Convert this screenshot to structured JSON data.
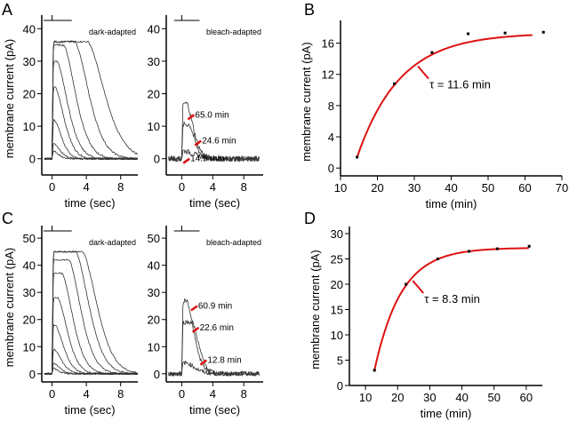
{
  "panel_letters": [
    "A",
    "B",
    "C",
    "D"
  ],
  "chart_data": [
    {
      "id": "A-dark",
      "type": "line",
      "panel": "A",
      "annotation": "dark-adapted",
      "xlabel": "time (sec)",
      "ylabel": "membrane current (pA)",
      "xlim": [
        -1.2,
        10
      ],
      "ylim": [
        -5,
        42
      ],
      "xticks": [
        0,
        4,
        8
      ],
      "yticks": [
        0,
        10,
        20,
        30,
        40
      ],
      "traces": [
        {
          "amp": 2.5,
          "plateau": 0,
          "decay": 0.8
        },
        {
          "amp": 5,
          "plateau": 0,
          "decay": 1.0
        },
        {
          "amp": 12,
          "plateau": 0.1,
          "decay": 1.2
        },
        {
          "amp": 22,
          "plateau": 0.2,
          "decay": 1.5
        },
        {
          "amp": 30,
          "plateau": 0.4,
          "decay": 1.8
        },
        {
          "amp": 35,
          "plateau": 1.2,
          "decay": 2.0
        },
        {
          "amp": 36,
          "plateau": 2.5,
          "decay": 2.3
        },
        {
          "amp": 36,
          "plateau": 4.0,
          "decay": 2.8
        }
      ],
      "labels": []
    },
    {
      "id": "A-bleach",
      "type": "line",
      "panel": "A",
      "annotation": "bleach-adapted",
      "xlabel": "time (sec)",
      "ylabel": "",
      "xlim": [
        -2,
        10.5
      ],
      "ylim": [
        -5,
        42
      ],
      "xticks": [
        0,
        4,
        8
      ],
      "yticks": [
        0,
        10,
        20,
        30,
        40
      ],
      "traces": [
        {
          "amp": 2.5,
          "plateau": 0,
          "decay": 2.0
        },
        {
          "amp": 10.5,
          "plateau": 0.8,
          "decay": 1.0
        },
        {
          "amp": 17,
          "plateau": 0.5,
          "decay": 1.2
        }
      ],
      "labels": [
        {
          "text": "65.0 min",
          "x": 1.6,
          "y": 13.5
        },
        {
          "text": "24.6 min",
          "x": 2.5,
          "y": 5.5
        },
        {
          "text": "14.5 min",
          "x": 1.0,
          "y": 0
        }
      ]
    },
    {
      "id": "B",
      "type": "scatter",
      "panel": "B",
      "xlabel": "time (min)",
      "ylabel": "membrane current (pA)",
      "xlim": [
        10,
        70
      ],
      "ylim": [
        -1,
        18
      ],
      "xticks": [
        10,
        20,
        30,
        40,
        50,
        60,
        70
      ],
      "yticks": [
        0,
        4,
        8,
        12,
        16
      ],
      "points": [
        [
          14.5,
          1.4
        ],
        [
          24.6,
          10.8
        ],
        [
          34.8,
          14.8
        ],
        [
          44.6,
          17.2
        ],
        [
          54.6,
          17.3
        ],
        [
          65.0,
          17.4
        ]
      ],
      "fit": {
        "tau": 11.6,
        "plateau": 17.3,
        "x0": 14.5,
        "y0": 1.4,
        "xmax": 62
      },
      "fit_label": "τ = 11.6 min",
      "fit_color": "#dd1111"
    },
    {
      "id": "C-dark",
      "type": "line",
      "panel": "C",
      "annotation": "dark-adapted",
      "xlabel": "time (sec)",
      "ylabel": "membrane current (pA)",
      "xlim": [
        -1.2,
        10
      ],
      "ylim": [
        -3,
        52
      ],
      "xticks": [
        0,
        4,
        8
      ],
      "yticks": [
        0,
        10,
        20,
        30,
        40,
        50
      ],
      "traces": [
        {
          "amp": 2,
          "plateau": 0,
          "decay": 0.8
        },
        {
          "amp": 4,
          "plateau": 0,
          "decay": 1.0
        },
        {
          "amp": 9,
          "plateau": 0.1,
          "decay": 1.2
        },
        {
          "amp": 18,
          "plateau": 0.2,
          "decay": 1.4
        },
        {
          "amp": 28,
          "plateau": 0.5,
          "decay": 1.6
        },
        {
          "amp": 37,
          "plateau": 1.0,
          "decay": 1.8
        },
        {
          "amp": 42,
          "plateau": 1.8,
          "decay": 2.0
        },
        {
          "amp": 45,
          "plateau": 2.6,
          "decay": 2.2
        },
        {
          "amp": 45,
          "plateau": 3.4,
          "decay": 2.4
        }
      ],
      "labels": []
    },
    {
      "id": "C-bleach",
      "type": "line",
      "panel": "C",
      "annotation": "bleach-adapted",
      "xlabel": "time (sec)",
      "ylabel": "",
      "xlim": [
        -2,
        10.5
      ],
      "ylim": [
        -3,
        52
      ],
      "xticks": [
        0,
        4,
        8
      ],
      "yticks": [
        0,
        10,
        20,
        30,
        40,
        50
      ],
      "traces": [
        {
          "amp": 4,
          "plateau": 0.5,
          "decay": 1.5
        },
        {
          "amp": 19,
          "plateau": 1.2,
          "decay": 1.2
        },
        {
          "amp": 27,
          "plateau": 0.5,
          "decay": 1.3
        }
      ],
      "labels": [
        {
          "text": "60.9 min",
          "x": 2.0,
          "y": 25
        },
        {
          "text": "22.6 min",
          "x": 2.2,
          "y": 17
        },
        {
          "text": "12.8 min",
          "x": 3.2,
          "y": 5
        }
      ]
    },
    {
      "id": "D",
      "type": "scatter",
      "panel": "D",
      "xlabel": "time (min)",
      "ylabel": "membrane current (pA)",
      "xlim": [
        5,
        65
      ],
      "ylim": [
        0,
        30
      ],
      "xticks": [
        10,
        20,
        30,
        40,
        50,
        60
      ],
      "yticks": [
        0,
        5,
        10,
        15,
        20,
        25,
        30
      ],
      "points": [
        [
          12.8,
          3
        ],
        [
          22.6,
          20
        ],
        [
          32.5,
          25
        ],
        [
          42.2,
          26.5
        ],
        [
          51,
          27
        ],
        [
          60.9,
          27.5
        ]
      ],
      "fit": {
        "tau": 8.3,
        "plateau": 27.2,
        "x0": 12.8,
        "y0": 3,
        "xmax": 61
      },
      "fit_label": "τ = 8.3 min",
      "fit_color": "#dd1111"
    }
  ]
}
